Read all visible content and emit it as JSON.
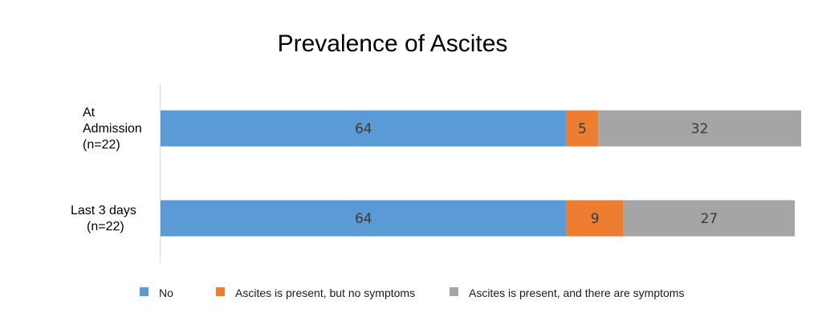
{
  "chart_data": {
    "type": "bar",
    "orientation": "horizontal",
    "stacked": true,
    "normalized": "percent",
    "title": "Prevalence of Ascites",
    "xlabel": "",
    "ylabel": "",
    "xlim": [
      0,
      101
    ],
    "grid": false,
    "legend_position": "bottom",
    "categories": [
      [
        "At",
        "Admission",
        "(n=22)"
      ],
      [
        "Last 3 days",
        "(n=22)"
      ]
    ],
    "series": [
      {
        "name": "No",
        "color": "#5b9bd5",
        "values": [
          64,
          64
        ]
      },
      {
        "name": "Ascites is present, but no symptoms",
        "color": "#ed7d31",
        "values": [
          5,
          9
        ]
      },
      {
        "name": "Ascites is present, and there are symptoms",
        "color": "#a5a5a5",
        "values": [
          32,
          27
        ]
      }
    ]
  }
}
